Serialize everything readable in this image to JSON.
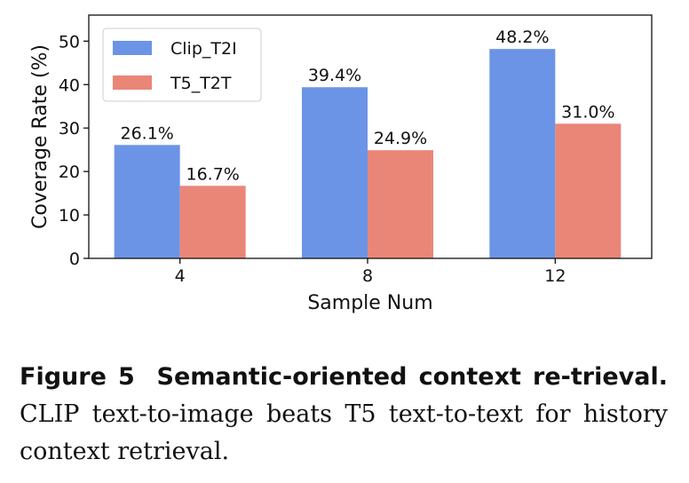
{
  "chart_data": {
    "type": "bar",
    "categories": [
      "4",
      "8",
      "12"
    ],
    "series": [
      {
        "name": "Clip_T2I",
        "values": [
          26.1,
          39.4,
          48.2
        ],
        "labels": [
          "26.1%",
          "39.4%",
          "48.2%"
        ],
        "color": "#6b94e6"
      },
      {
        "name": "T5_T2T",
        "values": [
          16.7,
          24.9,
          31.0
        ],
        "labels": [
          "16.7%",
          "24.9%",
          "31.0%"
        ],
        "color": "#ea8678"
      }
    ],
    "xlabel": "Sample Num",
    "ylabel": "Coverage Rate (%)",
    "ylim": [
      0,
      56
    ],
    "yticks": [
      0,
      10,
      20,
      30,
      40,
      50
    ],
    "legend_position": "top-left",
    "grid": false
  },
  "caption": {
    "label": "Figure 5",
    "title": "Semantic-oriented context re-trieval.",
    "text": "CLIP text-to-image beats T5 text-to-text for history context retrieval."
  }
}
